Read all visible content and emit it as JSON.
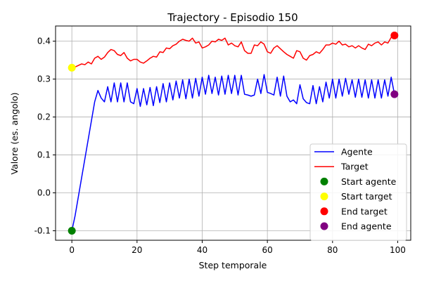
{
  "chart_data": {
    "type": "line",
    "title": "Trajectory - Episodio 150",
    "xlabel": "Step temporale",
    "ylabel": "Valore (es. angolo)",
    "xlim": [
      -5,
      104
    ],
    "ylim": [
      -0.125,
      0.44
    ],
    "xticks": [
      0,
      20,
      40,
      60,
      80,
      100
    ],
    "yticks": [
      -0.1,
      0.0,
      0.1,
      0.2,
      0.3,
      0.4
    ],
    "grid": true,
    "legend_position": "lower-right",
    "series": [
      {
        "name": "Agente",
        "color": "#0000ff",
        "x": [
          0,
          1,
          2,
          3,
          4,
          5,
          6,
          7,
          8,
          9,
          10,
          11,
          12,
          13,
          14,
          15,
          16,
          17,
          18,
          19,
          20,
          21,
          22,
          23,
          24,
          25,
          26,
          27,
          28,
          29,
          30,
          31,
          32,
          33,
          34,
          35,
          36,
          37,
          38,
          39,
          40,
          41,
          42,
          43,
          44,
          45,
          46,
          47,
          48,
          49,
          50,
          51,
          52,
          53,
          54,
          55,
          56,
          57,
          58,
          59,
          60,
          61,
          62,
          63,
          64,
          65,
          66,
          67,
          68,
          69,
          70,
          71,
          72,
          73,
          74,
          75,
          76,
          77,
          78,
          79,
          80,
          81,
          82,
          83,
          84,
          85,
          86,
          87,
          88,
          89,
          90,
          91,
          92,
          93,
          94,
          95,
          96,
          97,
          98,
          99
        ],
        "y": [
          -0.1,
          -0.06,
          -0.01,
          0.04,
          0.09,
          0.14,
          0.19,
          0.24,
          0.27,
          0.25,
          0.24,
          0.28,
          0.24,
          0.29,
          0.24,
          0.29,
          0.24,
          0.29,
          0.24,
          0.235,
          0.275,
          0.228,
          0.275,
          0.232,
          0.278,
          0.23,
          0.28,
          0.238,
          0.288,
          0.24,
          0.29,
          0.245,
          0.295,
          0.25,
          0.298,
          0.248,
          0.3,
          0.25,
          0.302,
          0.255,
          0.305,
          0.26,
          0.31,
          0.262,
          0.305,
          0.258,
          0.308,
          0.26,
          0.31,
          0.262,
          0.31,
          0.258,
          0.31,
          0.26,
          0.258,
          0.255,
          0.258,
          0.3,
          0.262,
          0.312,
          0.265,
          0.262,
          0.258,
          0.305,
          0.255,
          0.308,
          0.255,
          0.24,
          0.245,
          0.235,
          0.285,
          0.248,
          0.238,
          0.235,
          0.283,
          0.235,
          0.28,
          0.24,
          0.292,
          0.25,
          0.3,
          0.25,
          0.3,
          0.255,
          0.302,
          0.26,
          0.298,
          0.252,
          0.3,
          0.252,
          0.298,
          0.25,
          0.298,
          0.25,
          0.298,
          0.25,
          0.298,
          0.255,
          0.305,
          0.26
        ]
      },
      {
        "name": "Target",
        "color": "#ff0000",
        "x": [
          0,
          1,
          2,
          3,
          4,
          5,
          6,
          7,
          8,
          9,
          10,
          11,
          12,
          13,
          14,
          15,
          16,
          17,
          18,
          19,
          20,
          21,
          22,
          23,
          24,
          25,
          26,
          27,
          28,
          29,
          30,
          31,
          32,
          33,
          34,
          35,
          36,
          37,
          38,
          39,
          40,
          41,
          42,
          43,
          44,
          45,
          46,
          47,
          48,
          49,
          50,
          51,
          52,
          53,
          54,
          55,
          56,
          57,
          58,
          59,
          60,
          61,
          62,
          63,
          64,
          65,
          66,
          67,
          68,
          69,
          70,
          71,
          72,
          73,
          74,
          75,
          76,
          77,
          78,
          79,
          80,
          81,
          82,
          83,
          84,
          85,
          86,
          87,
          88,
          89,
          90,
          91,
          92,
          93,
          94,
          95,
          96,
          97,
          98,
          99
        ],
        "y": [
          0.33,
          0.332,
          0.336,
          0.34,
          0.338,
          0.345,
          0.34,
          0.355,
          0.36,
          0.352,
          0.358,
          0.37,
          0.378,
          0.375,
          0.365,
          0.362,
          0.37,
          0.355,
          0.348,
          0.352,
          0.352,
          0.345,
          0.342,
          0.348,
          0.355,
          0.36,
          0.358,
          0.372,
          0.37,
          0.382,
          0.38,
          0.388,
          0.392,
          0.4,
          0.405,
          0.402,
          0.4,
          0.408,
          0.395,
          0.398,
          0.382,
          0.385,
          0.39,
          0.4,
          0.398,
          0.405,
          0.402,
          0.408,
          0.39,
          0.395,
          0.388,
          0.385,
          0.398,
          0.375,
          0.368,
          0.368,
          0.39,
          0.388,
          0.398,
          0.392,
          0.372,
          0.368,
          0.382,
          0.388,
          0.38,
          0.372,
          0.365,
          0.36,
          0.355,
          0.375,
          0.372,
          0.355,
          0.35,
          0.362,
          0.365,
          0.372,
          0.368,
          0.378,
          0.39,
          0.39,
          0.395,
          0.392,
          0.4,
          0.39,
          0.392,
          0.385,
          0.388,
          0.382,
          0.388,
          0.382,
          0.378,
          0.392,
          0.388,
          0.395,
          0.398,
          0.39,
          0.398,
          0.395,
          0.41,
          0.415
        ]
      }
    ],
    "markers": [
      {
        "name": "Start agente",
        "color": "#008000",
        "x": 0,
        "y": -0.1
      },
      {
        "name": "Start target",
        "color": "#ffff00",
        "x": 0,
        "y": 0.33
      },
      {
        "name": "End target",
        "color": "#ff0000",
        "x": 99,
        "y": 0.415
      },
      {
        "name": "End agente",
        "color": "#800080",
        "x": 99,
        "y": 0.26
      }
    ]
  }
}
